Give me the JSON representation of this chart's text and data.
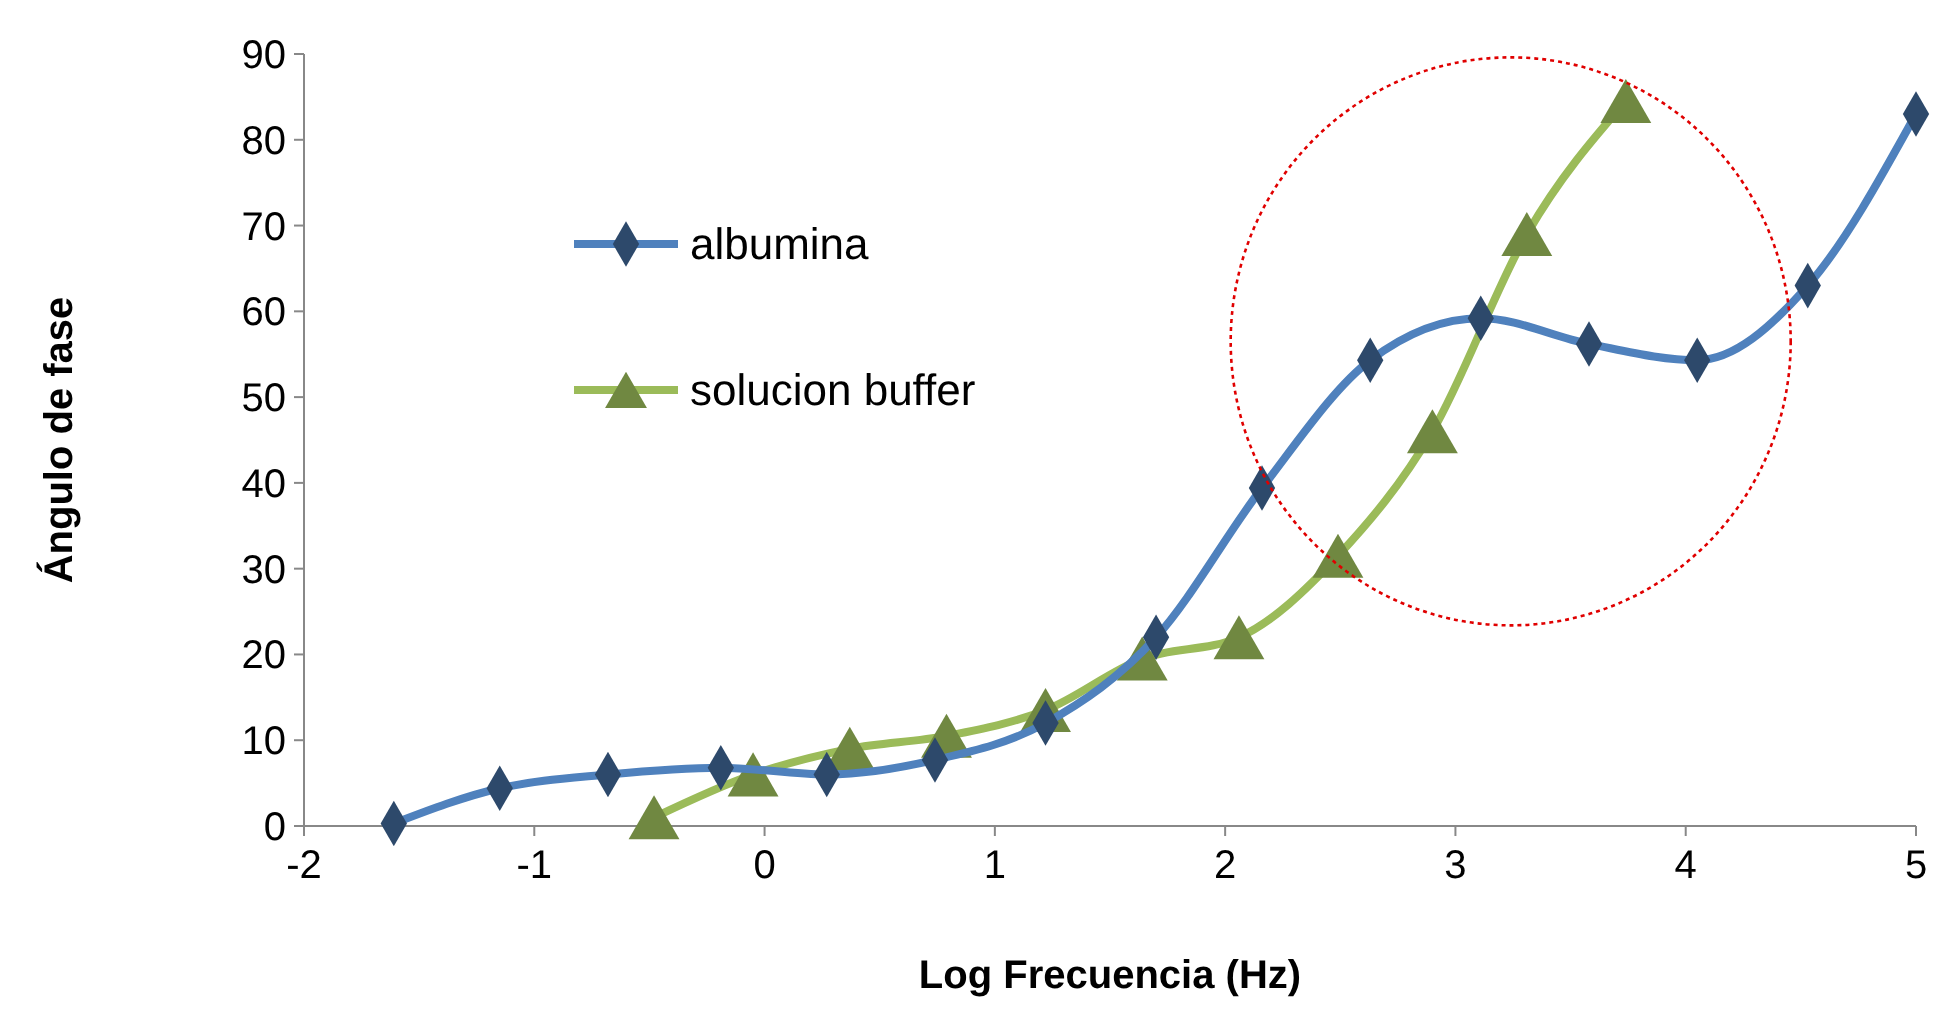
{
  "chart_data": {
    "type": "line",
    "xlabel": "Log  Frecuencia (Hz)",
    "ylabel": "Ángulo de fase",
    "xlim": [
      -2,
      5
    ],
    "xticks": [
      -2,
      -1,
      0,
      1,
      2,
      3,
      4,
      5
    ],
    "ylim": [
      0,
      90
    ],
    "yticks": [
      0,
      10,
      20,
      30,
      40,
      50,
      60,
      70,
      80,
      90
    ],
    "grid": false,
    "legend": "top left",
    "line_style": "solid",
    "series": [
      {
        "name": "albumina",
        "color": "#4f81bd",
        "marker": "diamond",
        "x": [
          -1.61,
          -1.15,
          -0.68,
          -0.19,
          0.27,
          0.74,
          1.22,
          1.7,
          2.16,
          2.63,
          3.11,
          3.58,
          4.05,
          4.53,
          5.0
        ],
        "values": [
          0.3,
          4.4,
          6,
          6.8,
          6,
          7.7,
          12,
          22,
          39.4,
          54.3,
          59.2,
          56.2,
          54.3,
          63,
          83
        ]
      },
      {
        "name": "solucion buffer",
        "color": "#9bbb59",
        "marker": "triangle",
        "x": [
          -0.48,
          -0.05,
          0.37,
          0.79,
          1.22,
          1.64,
          2.06,
          2.49,
          2.9,
          3.31,
          3.74
        ],
        "values": [
          1,
          6,
          9,
          10.5,
          13.5,
          19.5,
          22,
          31.5,
          46,
          69,
          84.5
        ]
      }
    ]
  }
}
